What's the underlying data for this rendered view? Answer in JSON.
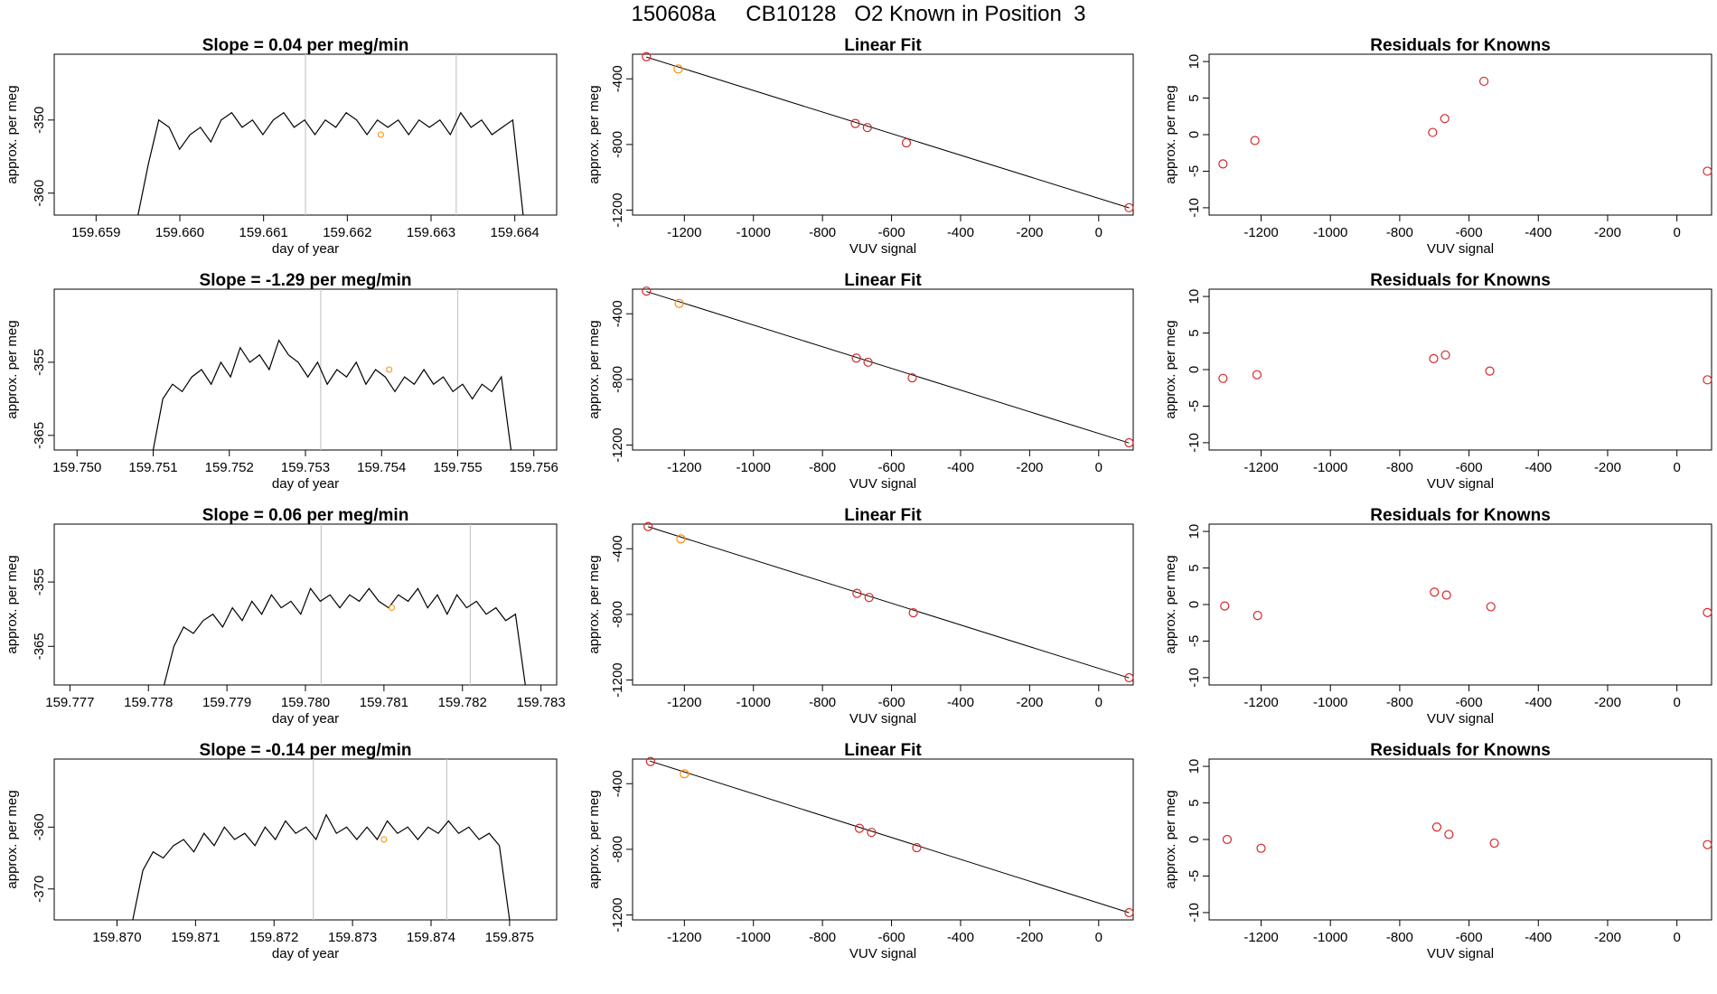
{
  "title": "150608a     CB10128   O2 Known in Position  3",
  "colors": {
    "trace": "#000000",
    "vline": "#c8c8c8",
    "point": "#d62728",
    "highlight": "#ff8c00",
    "fit": "#000000"
  },
  "chart_data": [
    {
      "type": "line",
      "title": "Slope =  0.04  per meg/min",
      "xlabel": "day of year",
      "ylabel": "approx. per meg",
      "xlim": [
        159.6585,
        159.6645
      ],
      "ylim": [
        -363,
        -341
      ],
      "xticks": [
        "159.659",
        "159.660",
        "159.661",
        "159.662",
        "159.663",
        "159.664"
      ],
      "yticks": [
        "-350",
        "-360"
      ],
      "vlines": [
        159.6615,
        159.6633
      ],
      "trace_x": [
        159.6595,
        159.6641
      ],
      "trace_y": [
        -363,
        -356,
        -350,
        -351,
        -354,
        -352,
        -351,
        -353,
        -350,
        -349,
        -351,
        -350,
        -352,
        -350,
        -349,
        -351,
        -350,
        -352,
        -350,
        -351,
        -349,
        -350,
        -352,
        -350,
        -351,
        -350,
        -352,
        -350,
        -351,
        -350,
        -352,
        -349,
        -351,
        -350,
        -352,
        -351,
        -350,
        -363
      ],
      "marker": [
        159.6624,
        -352
      ]
    },
    {
      "type": "scatter",
      "title": "Linear Fit",
      "xlabel": "VUV signal",
      "ylabel": "approx. per meg",
      "xlim": [
        -1350,
        100
      ],
      "ylim": [
        -1230,
        -250
      ],
      "xticks": [
        "-1200",
        "-1000",
        "-800",
        "-600",
        "-400",
        "-200",
        "0"
      ],
      "yticks": [
        "-400",
        "-800",
        "-1200"
      ],
      "x": [
        -1310,
        -1218,
        -705,
        -670,
        -557,
        88
      ],
      "y": [
        -265,
        -340,
        -672,
        -697,
        -790,
        -1185
      ],
      "highlight_index": 1,
      "fit": [
        [
          -1310,
          -267
        ],
        [
          88,
          -1186
        ]
      ]
    },
    {
      "type": "scatter",
      "title": "Residuals for Knowns",
      "xlabel": "VUV signal",
      "ylabel": "approx. per meg",
      "xlim": [
        -1350,
        100
      ],
      "ylim": [
        -11,
        11
      ],
      "xticks": [
        "-1200",
        "-1000",
        "-800",
        "-600",
        "-400",
        "-200",
        "0"
      ],
      "yticks": [
        "10",
        "5",
        "0",
        "-5",
        "-10"
      ],
      "x": [
        -1310,
        -1218,
        -705,
        -670,
        -557,
        88
      ],
      "y": [
        -4,
        -0.8,
        0.3,
        2.2,
        7.3,
        -5
      ]
    },
    {
      "type": "line",
      "title": "Slope =  -1.29  per meg/min",
      "xlabel": "day of year",
      "ylabel": "approx. per meg",
      "xlim": [
        159.7497,
        159.7563
      ],
      "ylim": [
        -367,
        -345
      ],
      "xticks": [
        "159.750",
        "159.751",
        "159.752",
        "159.753",
        "159.754",
        "159.755",
        "159.756"
      ],
      "yticks": [
        "-355",
        "-365"
      ],
      "vlines": [
        159.7532,
        159.755
      ],
      "trace_x": [
        159.751,
        159.7557
      ],
      "trace_y": [
        -367,
        -360,
        -358,
        -359,
        -357,
        -356,
        -358,
        -355,
        -357,
        -353,
        -355,
        -354,
        -356,
        -352,
        -354,
        -355,
        -357,
        -355,
        -358,
        -356,
        -357,
        -355,
        -358,
        -356,
        -357,
        -359,
        -357,
        -358,
        -356,
        -358,
        -357,
        -359,
        -358,
        -360,
        -358,
        -359,
        -357,
        -367
      ],
      "marker": [
        159.7541,
        -356
      ]
    },
    {
      "type": "scatter",
      "title": "Linear Fit",
      "xlabel": "VUV signal",
      "ylabel": "approx. per meg",
      "xlim": [
        -1350,
        100
      ],
      "ylim": [
        -1230,
        -250
      ],
      "xticks": [
        "-1200",
        "-1000",
        "-800",
        "-600",
        "-400",
        "-200",
        "0"
      ],
      "yticks": [
        "-400",
        "-800",
        "-1200"
      ],
      "x": [
        -1310,
        -1215,
        -702,
        -668,
        -540,
        88
      ],
      "y": [
        -262,
        -337,
        -670,
        -695,
        -790,
        -1186
      ],
      "highlight_index": 1,
      "fit": [
        [
          -1310,
          -264
        ],
        [
          88,
          -1187
        ]
      ]
    },
    {
      "type": "scatter",
      "title": "Residuals for Knowns",
      "xlabel": "VUV signal",
      "ylabel": "approx. per meg",
      "xlim": [
        -1350,
        100
      ],
      "ylim": [
        -11,
        11
      ],
      "xticks": [
        "-1200",
        "-1000",
        "-800",
        "-600",
        "-400",
        "-200",
        "0"
      ],
      "yticks": [
        "10",
        "5",
        "0",
        "-5",
        "-10"
      ],
      "x": [
        -1310,
        -1212,
        -702,
        -668,
        -540,
        88
      ],
      "y": [
        -1.2,
        -0.7,
        1.5,
        2,
        -0.2,
        -1.4
      ]
    },
    {
      "type": "line",
      "title": "Slope =  0.06  per meg/min",
      "xlabel": "day of year",
      "ylabel": "approx. per meg",
      "xlim": [
        159.7768,
        159.7832
      ],
      "ylim": [
        -371,
        -346
      ],
      "xticks": [
        "159.777",
        "159.778",
        "159.779",
        "159.780",
        "159.781",
        "159.782",
        "159.783"
      ],
      "yticks": [
        "-355",
        "-365"
      ],
      "vlines": [
        159.7802,
        159.7821
      ],
      "trace_x": [
        159.7782,
        159.7828
      ],
      "trace_y": [
        -371,
        -365,
        -362,
        -363,
        -361,
        -360,
        -362,
        -359,
        -361,
        -358,
        -360,
        -357,
        -359,
        -358,
        -360,
        -356,
        -358,
        -357,
        -359,
        -357,
        -358,
        -356,
        -358,
        -359,
        -357,
        -358,
        -356,
        -359,
        -357,
        -360,
        -357,
        -359,
        -358,
        -360,
        -359,
        -361,
        -360,
        -371
      ],
      "marker": [
        159.7811,
        -359
      ]
    },
    {
      "type": "scatter",
      "title": "Linear Fit",
      "xlabel": "VUV signal",
      "ylabel": "approx. per meg",
      "xlim": [
        -1350,
        100
      ],
      "ylim": [
        -1230,
        -250
      ],
      "xticks": [
        "-1200",
        "-1000",
        "-800",
        "-600",
        "-400",
        "-200",
        "0"
      ],
      "yticks": [
        "-400",
        "-800",
        "-1200"
      ],
      "x": [
        -1305,
        -1210,
        -700,
        -665,
        -537,
        88
      ],
      "y": [
        -265,
        -340,
        -672,
        -697,
        -790,
        -1186
      ],
      "highlight_index": 1,
      "fit": [
        [
          -1305,
          -266
        ],
        [
          88,
          -1187
        ]
      ]
    },
    {
      "type": "scatter",
      "title": "Residuals for Knowns",
      "xlabel": "VUV signal",
      "ylabel": "approx. per meg",
      "xlim": [
        -1350,
        100
      ],
      "ylim": [
        -11,
        11
      ],
      "xticks": [
        "-1200",
        "-1000",
        "-800",
        "-600",
        "-400",
        "-200",
        "0"
      ],
      "yticks": [
        "10",
        "5",
        "0",
        "-5",
        "-10"
      ],
      "x": [
        -1305,
        -1210,
        -700,
        -665,
        -537,
        88
      ],
      "y": [
        -0.2,
        -1.5,
        1.7,
        1.3,
        -0.3,
        -1.1
      ]
    },
    {
      "type": "line",
      "title": "Slope =  -0.14  per meg/min",
      "xlabel": "day of year",
      "ylabel": "approx. per meg",
      "xlim": [
        159.8692,
        159.8756
      ],
      "ylim": [
        -375,
        -349
      ],
      "xticks": [
        "159.870",
        "159.871",
        "159.872",
        "159.873",
        "159.874",
        "159.875"
      ],
      "yticks": [
        "-360",
        "-370"
      ],
      "vlines": [
        159.8725,
        159.8742
      ],
      "trace_x": [
        159.8702,
        159.875
      ],
      "trace_y": [
        -375,
        -367,
        -364,
        -365,
        -363,
        -362,
        -364,
        -361,
        -363,
        -360,
        -362,
        -361,
        -363,
        -360,
        -362,
        -359,
        -361,
        -360,
        -362,
        -358,
        -361,
        -360,
        -362,
        -360,
        -362,
        -359,
        -361,
        -360,
        -362,
        -360,
        -361,
        -359,
        -361,
        -360,
        -362,
        -361,
        -363,
        -375
      ],
      "marker": [
        159.8734,
        -362
      ]
    },
    {
      "type": "scatter",
      "title": "Linear Fit",
      "xlabel": "VUV signal",
      "ylabel": "approx. per meg",
      "xlim": [
        -1350,
        100
      ],
      "ylim": [
        -1230,
        -250
      ],
      "xticks": [
        "-1200",
        "-1000",
        "-800",
        "-600",
        "-400",
        "-200",
        "0"
      ],
      "yticks": [
        "-400",
        "-800",
        "-1200"
      ],
      "x": [
        -1298,
        -1200,
        -693,
        -658,
        -527,
        88
      ],
      "y": [
        -265,
        -340,
        -672,
        -697,
        -790,
        -1186
      ],
      "highlight_index": 1,
      "fit": [
        [
          -1300,
          -262
        ],
        [
          88,
          -1186
        ]
      ]
    },
    {
      "type": "scatter",
      "title": "Residuals for Knowns",
      "xlabel": "VUV signal",
      "ylabel": "approx. per meg",
      "xlim": [
        -1350,
        100
      ],
      "ylim": [
        -11,
        11
      ],
      "xticks": [
        "-1200",
        "-1000",
        "-800",
        "-600",
        "-400",
        "-200",
        "0"
      ],
      "yticks": [
        "10",
        "5",
        "0",
        "-5",
        "-10"
      ],
      "x": [
        -1298,
        -1200,
        -693,
        -658,
        -527,
        88
      ],
      "y": [
        0,
        -1.2,
        1.7,
        0.7,
        -0.5,
        -0.7
      ]
    }
  ]
}
